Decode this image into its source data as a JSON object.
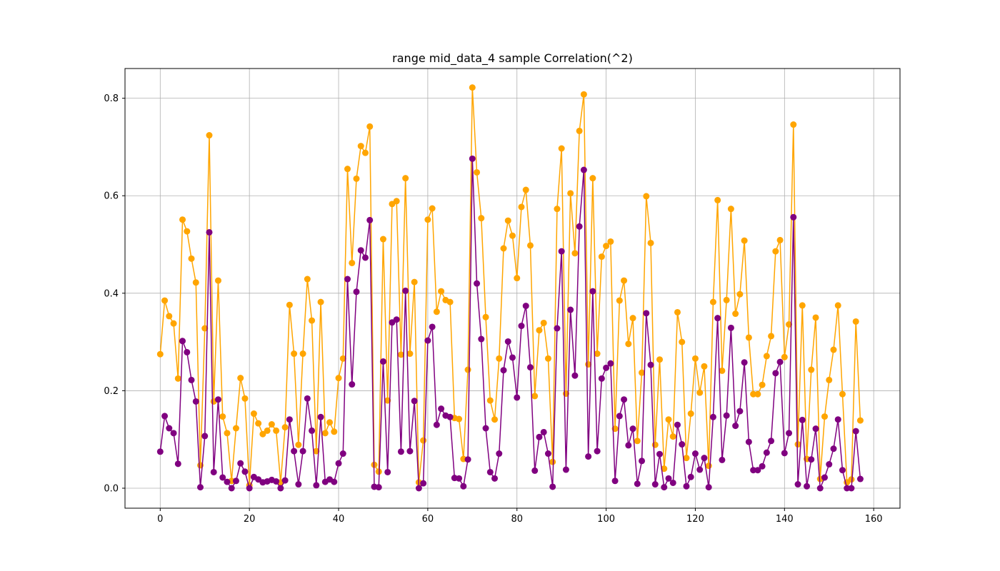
{
  "chart_data": {
    "type": "line",
    "title": "range mid_data_4 sample Correlation(^2)",
    "xlabel": "",
    "ylabel": "",
    "xlim": [
      -7.9,
      165.9
    ],
    "ylim": [
      -0.041,
      0.861
    ],
    "xticks": [
      0,
      20,
      40,
      60,
      80,
      100,
      120,
      140,
      160
    ],
    "yticks": [
      0.0,
      0.2,
      0.4,
      0.6,
      0.8
    ],
    "grid": true,
    "marker": "circle",
    "series": [
      {
        "color": "#FFA500",
        "values": [
          0.275,
          0.385,
          0.353,
          0.338,
          0.225,
          0.551,
          0.527,
          0.471,
          0.422,
          0.047,
          0.328,
          0.724,
          0.178,
          0.426,
          0.147,
          0.113,
          0.015,
          0.123,
          0.226,
          0.184,
          0.006,
          0.153,
          0.133,
          0.111,
          0.118,
          0.131,
          0.118,
          0.012,
          0.125,
          0.376,
          0.276,
          0.089,
          0.276,
          0.429,
          0.344,
          0.076,
          0.382,
          0.113,
          0.135,
          0.116,
          0.226,
          0.266,
          0.655,
          0.462,
          0.635,
          0.702,
          0.688,
          0.742,
          0.048,
          0.034,
          0.511,
          0.18,
          0.583,
          0.589,
          0.274,
          0.636,
          0.276,
          0.423,
          0.012,
          0.098,
          0.551,
          0.574,
          0.362,
          0.404,
          0.386,
          0.382,
          0.144,
          0.142,
          0.06,
          0.243,
          0.822,
          0.648,
          0.554,
          0.351,
          0.18,
          0.141,
          0.266,
          0.492,
          0.549,
          0.518,
          0.431,
          0.577,
          0.612,
          0.498,
          0.189,
          0.324,
          0.339,
          0.266,
          0.054,
          0.573,
          0.697,
          0.194,
          0.605,
          0.482,
          0.733,
          0.808,
          0.254,
          0.636,
          0.276,
          0.475,
          0.497,
          0.506,
          0.122,
          0.385,
          0.426,
          0.296,
          0.349,
          0.097,
          0.237,
          0.599,
          0.503,
          0.089,
          0.264,
          0.04,
          0.141,
          0.106,
          0.361,
          0.3,
          0.062,
          0.153,
          0.266,
          0.196,
          0.25,
          0.046,
          0.382,
          0.591,
          0.241,
          0.386,
          0.573,
          0.358,
          0.398,
          0.508,
          0.309,
          0.193,
          0.193,
          0.212,
          0.271,
          0.312,
          0.486,
          0.509,
          0.269,
          0.336,
          0.746,
          0.09,
          0.375,
          0.06,
          0.243,
          0.35,
          0.019,
          0.147,
          0.222,
          0.284,
          0.375,
          0.193,
          0.012,
          0.018,
          0.342,
          0.139
        ]
      },
      {
        "color": "#800080",
        "values": [
          0.075,
          0.148,
          0.123,
          0.113,
          0.05,
          0.302,
          0.279,
          0.222,
          0.178,
          0.002,
          0.107,
          0.525,
          0.033,
          0.182,
          0.022,
          0.013,
          0.0,
          0.015,
          0.051,
          0.034,
          0.0,
          0.023,
          0.018,
          0.012,
          0.014,
          0.017,
          0.014,
          0.0,
          0.016,
          0.141,
          0.076,
          0.008,
          0.076,
          0.184,
          0.118,
          0.006,
          0.146,
          0.013,
          0.018,
          0.013,
          0.051,
          0.071,
          0.429,
          0.213,
          0.403,
          0.488,
          0.473,
          0.55,
          0.003,
          0.002,
          0.26,
          0.033,
          0.34,
          0.346,
          0.075,
          0.405,
          0.076,
          0.179,
          0.0,
          0.01,
          0.303,
          0.331,
          0.13,
          0.163,
          0.149,
          0.146,
          0.021,
          0.02,
          0.004,
          0.059,
          0.676,
          0.42,
          0.306,
          0.123,
          0.033,
          0.02,
          0.071,
          0.242,
          0.301,
          0.268,
          0.186,
          0.333,
          0.374,
          0.248,
          0.036,
          0.105,
          0.115,
          0.071,
          0.003,
          0.328,
          0.486,
          0.038,
          0.366,
          0.231,
          0.537,
          0.653,
          0.065,
          0.404,
          0.076,
          0.225,
          0.247,
          0.256,
          0.015,
          0.148,
          0.182,
          0.088,
          0.122,
          0.009,
          0.056,
          0.359,
          0.253,
          0.008,
          0.07,
          0.002,
          0.02,
          0.011,
          0.13,
          0.09,
          0.004,
          0.023,
          0.071,
          0.038,
          0.062,
          0.002,
          0.146,
          0.349,
          0.058,
          0.149,
          0.329,
          0.128,
          0.158,
          0.258,
          0.095,
          0.037,
          0.037,
          0.045,
          0.073,
          0.097,
          0.236,
          0.259,
          0.072,
          0.113,
          0.556,
          0.008,
          0.14,
          0.004,
          0.059,
          0.122,
          0.0,
          0.022,
          0.049,
          0.081,
          0.141,
          0.037,
          0.0,
          0.0,
          0.117,
          0.019
        ]
      }
    ]
  }
}
